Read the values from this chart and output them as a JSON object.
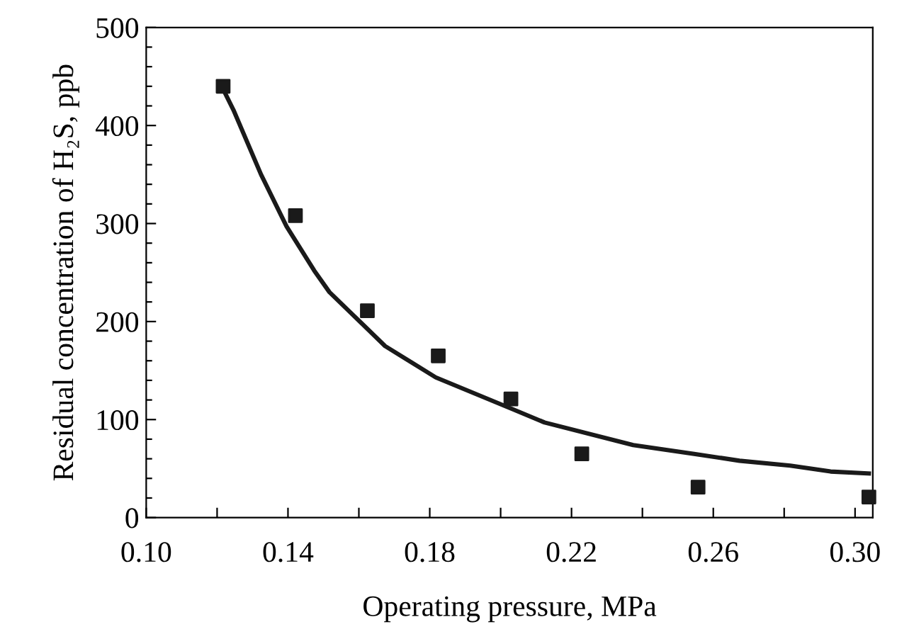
{
  "chart_data": {
    "type": "scatter",
    "xlabel": "Operating pressure, MPa",
    "ylabel": "Residual concentration of H₂S, ppb",
    "series": [
      {
        "color": "#1a1a1a",
        "marker": "square",
        "x": [
          0.1217,
          0.1421,
          0.1624,
          0.1824,
          0.2029,
          0.2229,
          0.2557,
          0.3039
        ],
        "values": [
          440,
          308,
          211,
          165,
          121,
          65,
          31,
          21
        ]
      },
      {
        "type": "line",
        "color": "#1a1a1a",
        "marker": "none",
        "line_style": "solid",
        "x": [
          0.1217,
          0.1246,
          0.1324,
          0.1396,
          0.1474,
          0.1517,
          0.1674,
          0.1817,
          0.2031,
          0.2124,
          0.2374,
          0.2546,
          0.2674,
          0.2817,
          0.2931,
          0.3039
        ],
        "values": [
          437,
          416,
          350,
          297,
          252,
          230,
          175,
          143,
          111,
          97,
          74,
          65,
          58,
          53,
          47,
          45
        ]
      }
    ],
    "xlim": [
      0.1,
      0.305
    ],
    "xticks": [
      {
        "value": 0.1,
        "label": "0.10"
      },
      {
        "value": 0.12,
        "label": null
      },
      {
        "value": 0.14,
        "label": "0.14"
      },
      {
        "value": 0.16,
        "label": null
      },
      {
        "value": 0.18,
        "label": "0.18"
      },
      {
        "value": 0.2,
        "label": null
      },
      {
        "value": 0.22,
        "label": "0.22"
      },
      {
        "value": 0.24,
        "label": null
      },
      {
        "value": 0.26,
        "label": "0.26"
      },
      {
        "value": 0.28,
        "label": null
      },
      {
        "value": 0.3,
        "label": "0.30"
      }
    ],
    "ylim": [
      0,
      500
    ],
    "yticks": [
      0,
      {
        "value": 20,
        "label": null
      },
      {
        "value": 40,
        "label": null
      },
      {
        "value": 60,
        "label": null
      },
      {
        "value": 80,
        "label": null
      },
      100,
      {
        "value": 120,
        "label": null
      },
      {
        "value": 140,
        "label": null
      },
      {
        "value": 160,
        "label": null
      },
      {
        "value": 180,
        "label": null
      },
      200,
      {
        "value": 220,
        "label": null
      },
      {
        "value": 240,
        "label": null
      },
      {
        "value": 260,
        "label": null
      },
      {
        "value": 280,
        "label": null
      },
      300,
      {
        "value": 320,
        "label": null
      },
      {
        "value": 340,
        "label": null
      },
      {
        "value": 360,
        "label": null
      },
      {
        "value": 380,
        "label": null
      },
      400,
      {
        "value": 420,
        "label": null
      },
      {
        "value": 440,
        "label": null
      },
      {
        "value": 460,
        "label": null
      },
      {
        "value": 480,
        "label": null
      },
      500
    ],
    "grid": false,
    "legend": false
  }
}
